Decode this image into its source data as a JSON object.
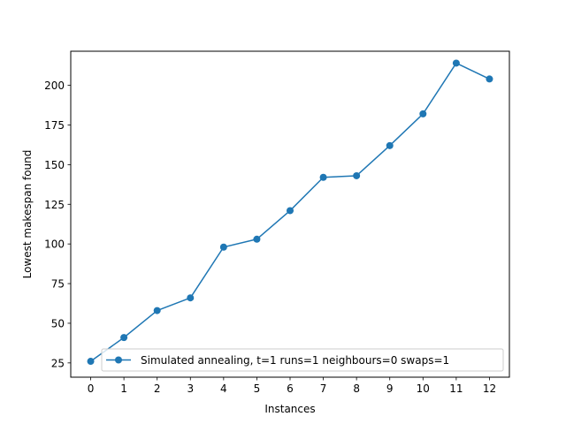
{
  "chart_data": {
    "type": "line",
    "title": "",
    "xlabel": "Instances",
    "ylabel": "Lowest makespan found",
    "x": [
      0,
      1,
      2,
      3,
      4,
      5,
      6,
      7,
      8,
      9,
      10,
      11,
      12
    ],
    "x_ticks": [
      "0",
      "1",
      "2",
      "3",
      "4",
      "5",
      "6",
      "7",
      "8",
      "9",
      "10",
      "11",
      "12"
    ],
    "y_ticks": [
      "25",
      "50",
      "75",
      "100",
      "125",
      "150",
      "175",
      "200"
    ],
    "xlim": [
      -0.6,
      12.6
    ],
    "ylim": [
      16,
      221.5
    ],
    "grid": false,
    "legend_position": "lower-right",
    "series": [
      {
        "name": "Simulated annealing, t=1 runs=1 neighbours=0 swaps=1",
        "color": "#1f77b4",
        "marker": "circle",
        "values": [
          26,
          41,
          58,
          66,
          98,
          103,
          121,
          142,
          143,
          162,
          182,
          214,
          204
        ]
      }
    ]
  }
}
